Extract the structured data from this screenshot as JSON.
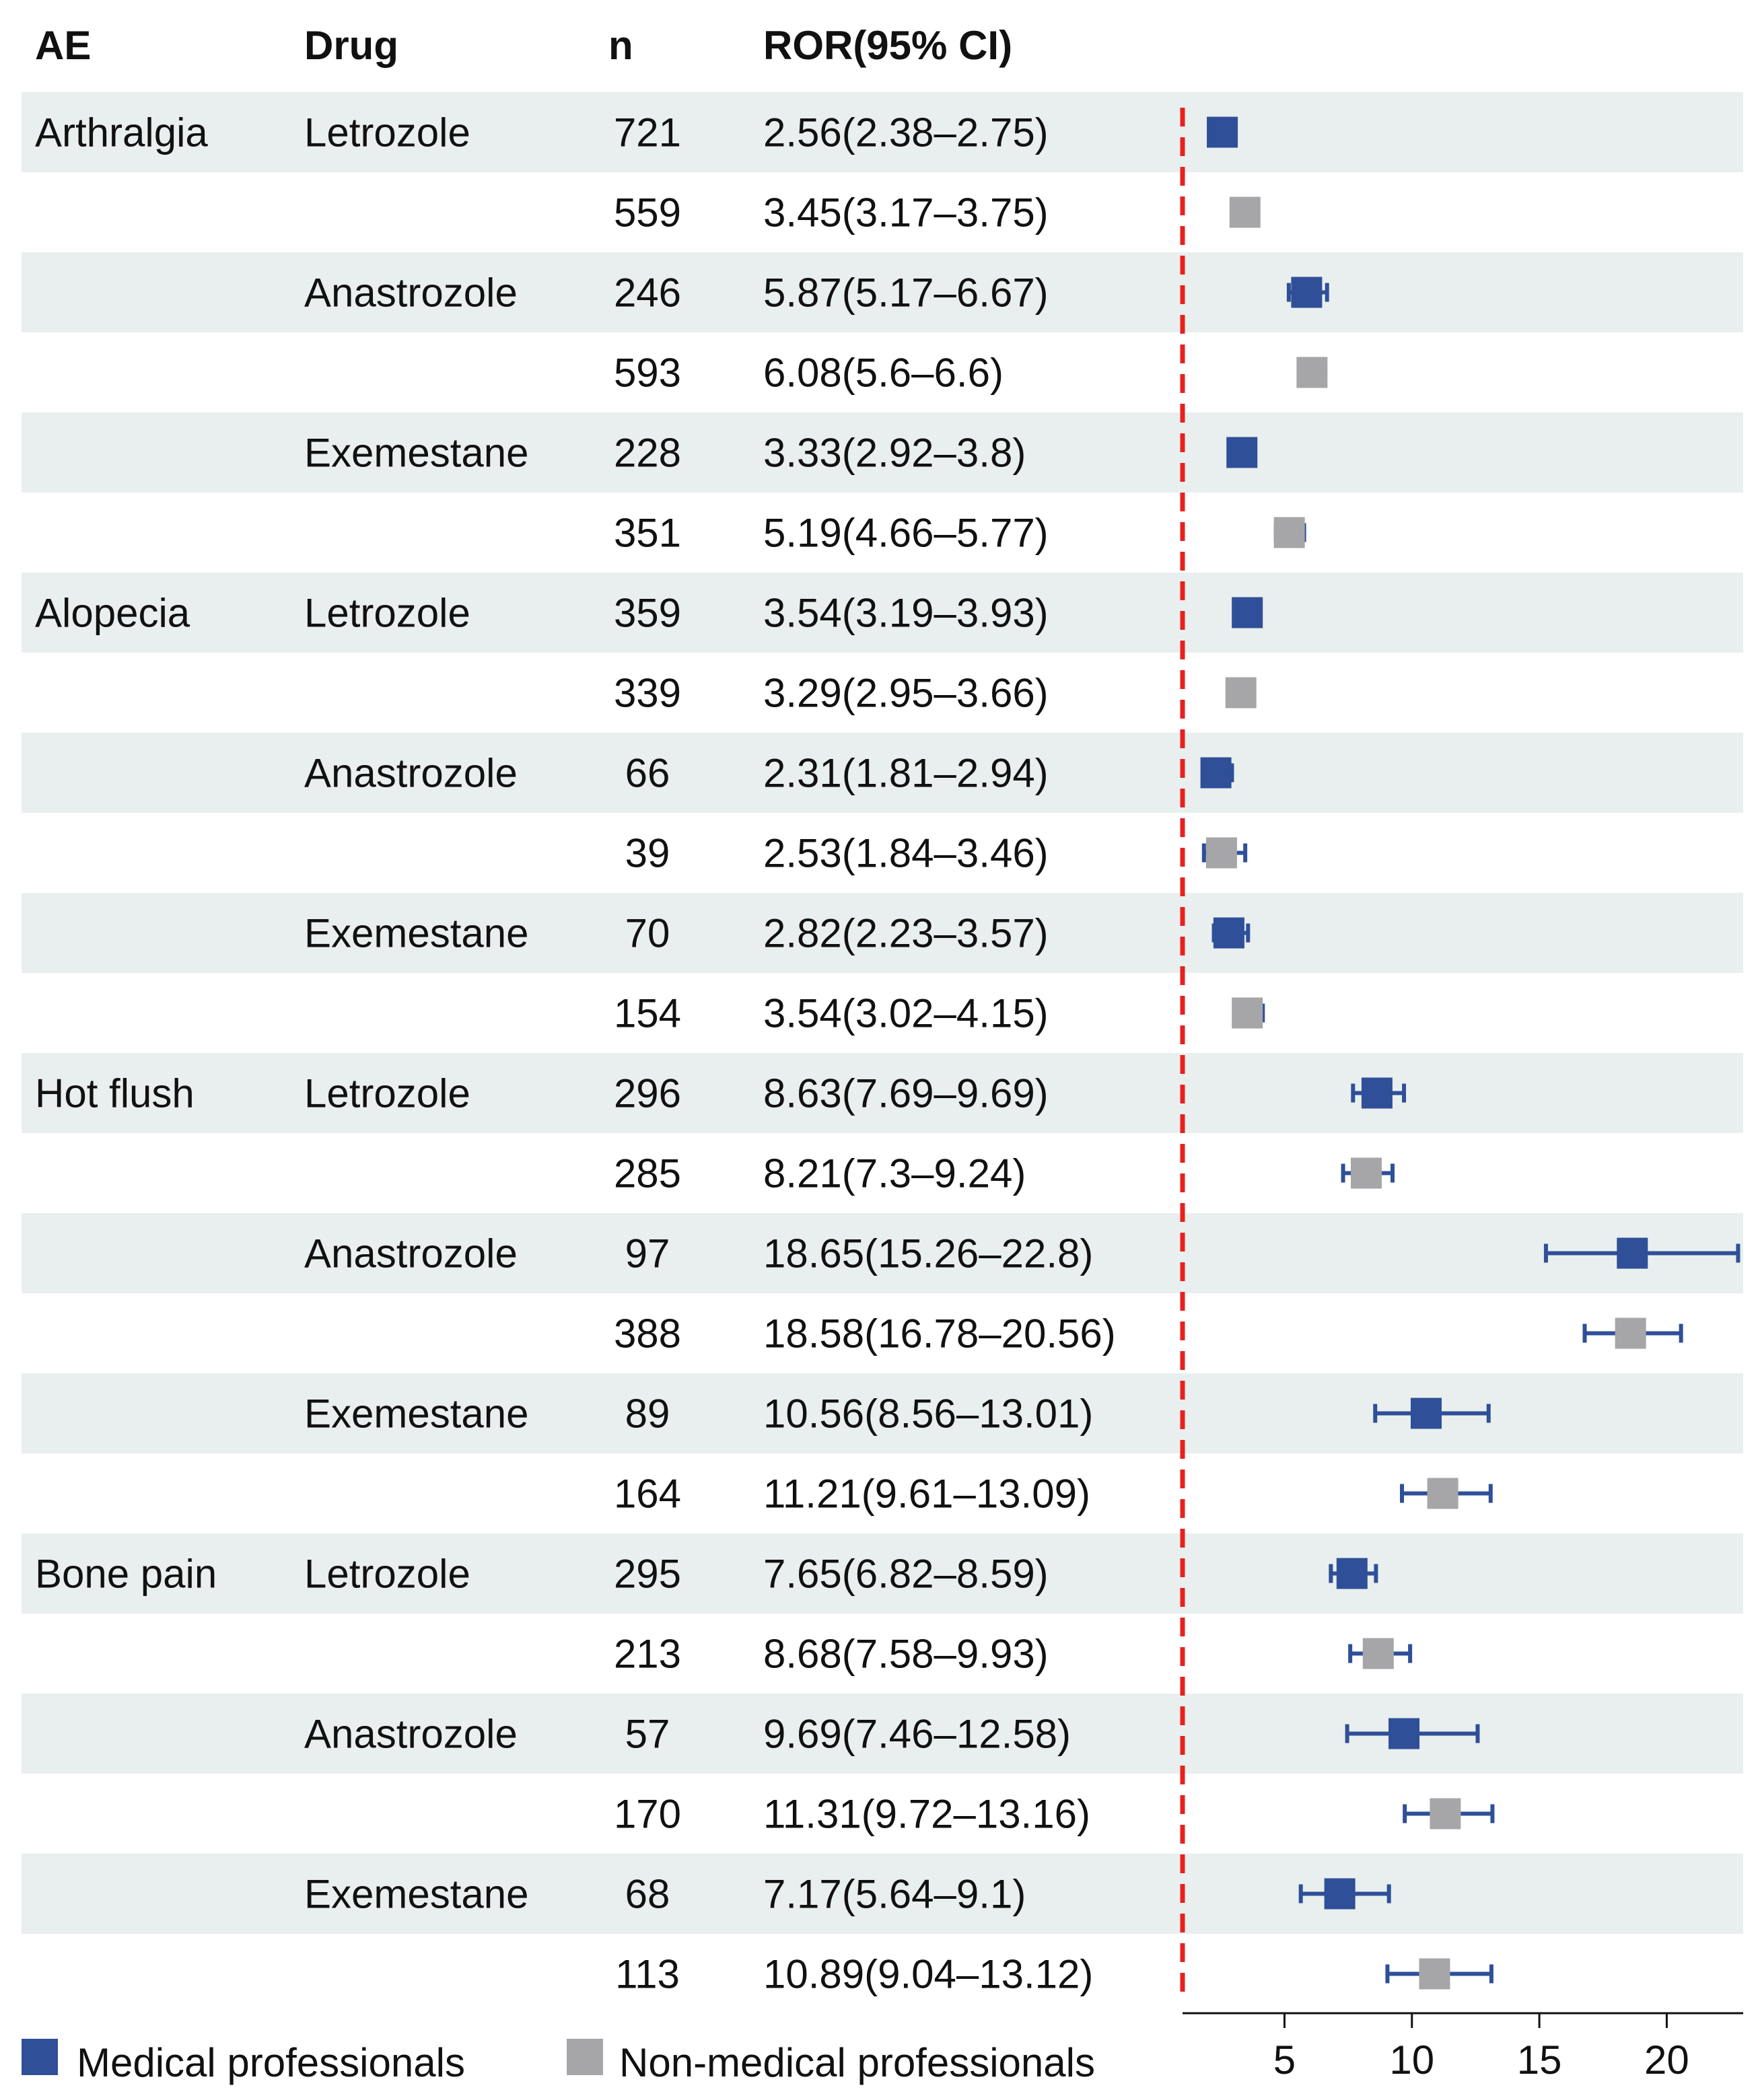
{
  "chart_data": {
    "type": "forest",
    "title": "",
    "columns": {
      "ae": "AE",
      "drug": "Drug",
      "n": "n",
      "ror": "ROR(95% CI)"
    },
    "colors": {
      "medical": "#2f4f98",
      "nonmedical": "#a6a6a8",
      "refline": "#e8201e",
      "stripe": "#e9efee"
    },
    "legend": [
      {
        "key": "medical",
        "label": "Medical professionals"
      },
      {
        "key": "nonmedical",
        "label": "Non-medical professionals"
      }
    ],
    "reference_line": 1,
    "xaxis": {
      "ticks": [
        5,
        10,
        15,
        20
      ],
      "range": [
        1,
        23
      ]
    },
    "rows": [
      {
        "ae": "Arthralgia",
        "drug": "Letrozole",
        "n": "721",
        "ror_text": "2.56(2.38–2.75)",
        "ror": 2.56,
        "lo": 2.38,
        "hi": 2.75,
        "group": "medical"
      },
      {
        "ae": "",
        "drug": "",
        "n": "559",
        "ror_text": "3.45(3.17–3.75)",
        "ror": 3.45,
        "lo": 3.17,
        "hi": 3.75,
        "group": "nonmedical"
      },
      {
        "ae": "",
        "drug": "Anastrozole",
        "n": "246",
        "ror_text": "5.87(5.17–6.67)",
        "ror": 5.87,
        "lo": 5.17,
        "hi": 6.67,
        "group": "medical"
      },
      {
        "ae": "",
        "drug": "",
        "n": "593",
        "ror_text": "6.08(5.6–6.6)",
        "ror": 6.08,
        "lo": 5.6,
        "hi": 6.6,
        "group": "nonmedical"
      },
      {
        "ae": "",
        "drug": "Exemestane",
        "n": "228",
        "ror_text": "3.33(2.92–3.8)",
        "ror": 3.33,
        "lo": 2.92,
        "hi": 3.8,
        "group": "medical"
      },
      {
        "ae": "",
        "drug": "",
        "n": "351",
        "ror_text": "5.19(4.66–5.77)",
        "ror": 5.19,
        "lo": 4.66,
        "hi": 5.77,
        "group": "nonmedical"
      },
      {
        "ae": "Alopecia",
        "drug": "Letrozole",
        "n": "359",
        "ror_text": "3.54(3.19–3.93)",
        "ror": 3.54,
        "lo": 3.19,
        "hi": 3.93,
        "group": "medical"
      },
      {
        "ae": "",
        "drug": "",
        "n": "339",
        "ror_text": "3.29(2.95–3.66)",
        "ror": 3.29,
        "lo": 2.95,
        "hi": 3.66,
        "group": "nonmedical"
      },
      {
        "ae": "",
        "drug": "Anastrozole",
        "n": "66",
        "ror_text": "2.31(1.81–2.94)",
        "ror": 2.31,
        "lo": 1.81,
        "hi": 2.94,
        "group": "medical"
      },
      {
        "ae": "",
        "drug": "",
        "n": "39",
        "ror_text": "2.53(1.84–3.46)",
        "ror": 2.53,
        "lo": 1.84,
        "hi": 3.46,
        "group": "nonmedical"
      },
      {
        "ae": "",
        "drug": "Exemestane",
        "n": "70",
        "ror_text": "2.82(2.23–3.57)",
        "ror": 2.82,
        "lo": 2.23,
        "hi": 3.57,
        "group": "medical"
      },
      {
        "ae": "",
        "drug": "",
        "n": "154",
        "ror_text": "3.54(3.02–4.15)",
        "ror": 3.54,
        "lo": 3.02,
        "hi": 4.15,
        "group": "nonmedical"
      },
      {
        "ae": "Hot flush",
        "drug": "Letrozole",
        "n": "296",
        "ror_text": "8.63(7.69–9.69)",
        "ror": 8.63,
        "lo": 7.69,
        "hi": 9.69,
        "group": "medical"
      },
      {
        "ae": "",
        "drug": "",
        "n": "285",
        "ror_text": "8.21(7.3–9.24)",
        "ror": 8.21,
        "lo": 7.3,
        "hi": 9.24,
        "group": "nonmedical"
      },
      {
        "ae": "",
        "drug": "Anastrozole",
        "n": "97",
        "ror_text": "18.65(15.26–22.8)",
        "ror": 18.65,
        "lo": 15.26,
        "hi": 22.8,
        "group": "medical"
      },
      {
        "ae": "",
        "drug": "",
        "n": "388",
        "ror_text": "18.58(16.78–20.56)",
        "ror": 18.58,
        "lo": 16.78,
        "hi": 20.56,
        "group": "nonmedical"
      },
      {
        "ae": "",
        "drug": "Exemestane",
        "n": "89",
        "ror_text": "10.56(8.56–13.01)",
        "ror": 10.56,
        "lo": 8.56,
        "hi": 13.01,
        "group": "medical"
      },
      {
        "ae": "",
        "drug": "",
        "n": "164",
        "ror_text": "11.21(9.61–13.09)",
        "ror": 11.21,
        "lo": 9.61,
        "hi": 13.09,
        "group": "nonmedical"
      },
      {
        "ae": "Bone pain",
        "drug": "Letrozole",
        "n": "295",
        "ror_text": "7.65(6.82–8.59)",
        "ror": 7.65,
        "lo": 6.82,
        "hi": 8.59,
        "group": "medical"
      },
      {
        "ae": "",
        "drug": "",
        "n": "213",
        "ror_text": "8.68(7.58–9.93)",
        "ror": 8.68,
        "lo": 7.58,
        "hi": 9.93,
        "group": "nonmedical"
      },
      {
        "ae": "",
        "drug": "Anastrozole",
        "n": "57",
        "ror_text": "9.69(7.46–12.58)",
        "ror": 9.69,
        "lo": 7.46,
        "hi": 12.58,
        "group": "medical"
      },
      {
        "ae": "",
        "drug": "",
        "n": "170",
        "ror_text": "11.31(9.72–13.16)",
        "ror": 11.31,
        "lo": 9.72,
        "hi": 13.16,
        "group": "nonmedical"
      },
      {
        "ae": "",
        "drug": "Exemestane",
        "n": "68",
        "ror_text": "7.17(5.64–9.1)",
        "ror": 7.17,
        "lo": 5.64,
        "hi": 9.1,
        "group": "medical"
      },
      {
        "ae": "",
        "drug": "",
        "n": "113",
        "ror_text": "10.89(9.04–13.12)",
        "ror": 10.89,
        "lo": 9.04,
        "hi": 13.12,
        "group": "nonmedical"
      }
    ]
  }
}
